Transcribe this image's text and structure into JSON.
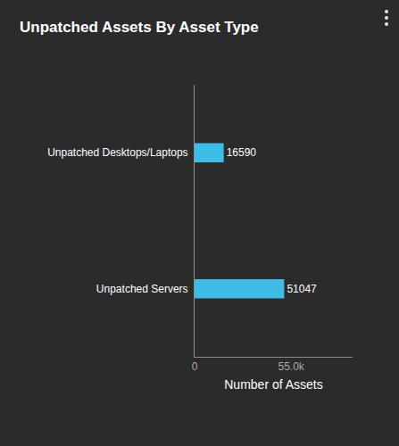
{
  "chart_data": {
    "type": "bar",
    "title": "Unpatched Assets By Asset Type",
    "orientation": "horizontal",
    "categories": [
      "Unpatched Desktops/Laptops",
      "Unpatched Servers"
    ],
    "values": [
      16590,
      51047
    ],
    "color": "#3dbde5",
    "xlabel": "Number of Assets",
    "xlim": [
      0,
      90000
    ],
    "xticks": [
      0,
      {
        "value": 55000,
        "label": "55.0k"
      }
    ],
    "grid": false,
    "data_labels": true
  }
}
